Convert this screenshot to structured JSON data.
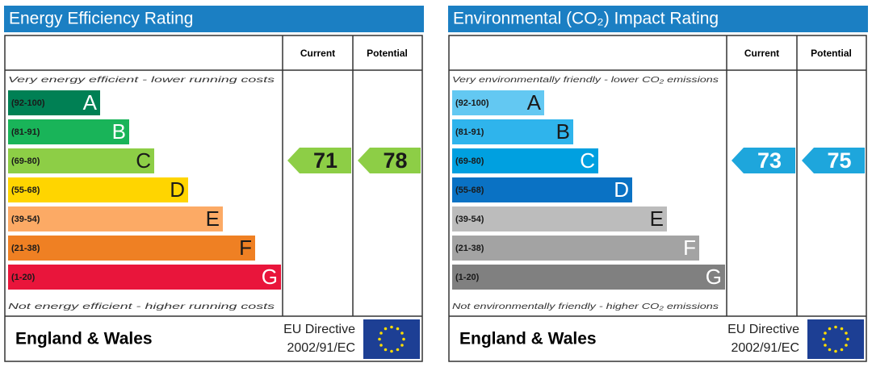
{
  "panels": [
    {
      "title": "Energy Efficiency Rating",
      "columns": [
        "Current",
        "Potential"
      ],
      "top_note": "Very energy efficient - lower running costs",
      "bottom_note": "Not energy efficient - higher running costs",
      "bands": [
        {
          "range": "(92-100)",
          "letter": "A",
          "color": "#008054",
          "letter_color": "#ffffff"
        },
        {
          "range": "(81-91)",
          "letter": "B",
          "color": "#19b459",
          "letter_color": "#ffffff"
        },
        {
          "range": "(69-80)",
          "letter": "C",
          "color": "#8dce46",
          "letter_color": "#1a1a1a"
        },
        {
          "range": "(55-68)",
          "letter": "D",
          "color": "#ffd500",
          "letter_color": "#1a1a1a"
        },
        {
          "range": "(39-54)",
          "letter": "E",
          "color": "#fcaa65",
          "letter_color": "#1a1a1a"
        },
        {
          "range": "(21-38)",
          "letter": "F",
          "color": "#ef8023",
          "letter_color": "#1a1a1a"
        },
        {
          "range": "(1-20)",
          "letter": "G",
          "color": "#e9153b",
          "letter_color": "#ffffff"
        }
      ],
      "current": 71,
      "potential": 78,
      "arrow_color": "#8dce46",
      "arrow_text_color": "#1a1a1a",
      "region": "England & Wales",
      "directive": [
        "EU Directive",
        "2002/91/EC"
      ]
    },
    {
      "title": "Environmental (CO₂) Impact Rating",
      "columns": [
        "Current",
        "Potential"
      ],
      "top_note": "Very environmentally friendly - lower CO₂ emissions",
      "bottom_note": "Not environmentally friendly - higher CO₂ emissions",
      "bands": [
        {
          "range": "(92-100)",
          "letter": "A",
          "color": "#63c8f2",
          "letter_color": "#1a1a1a"
        },
        {
          "range": "(81-91)",
          "letter": "B",
          "color": "#2fb4ec",
          "letter_color": "#1a1a1a"
        },
        {
          "range": "(69-80)",
          "letter": "C",
          "color": "#00a0e0",
          "letter_color": "#ffffff"
        },
        {
          "range": "(55-68)",
          "letter": "D",
          "color": "#0a72c4",
          "letter_color": "#ffffff"
        },
        {
          "range": "(39-54)",
          "letter": "E",
          "color": "#bcbcbc",
          "letter_color": "#1a1a1a"
        },
        {
          "range": "(21-38)",
          "letter": "F",
          "color": "#a3a3a3",
          "letter_color": "#ffffff"
        },
        {
          "range": "(1-20)",
          "letter": "G",
          "color": "#808080",
          "letter_color": "#ffffff"
        }
      ],
      "current": 73,
      "potential": 75,
      "arrow_color": "#1ea6dc",
      "arrow_text_color": "#ffffff",
      "region": "England & Wales",
      "directive": [
        "EU Directive",
        "2002/91/EC"
      ]
    }
  ]
}
